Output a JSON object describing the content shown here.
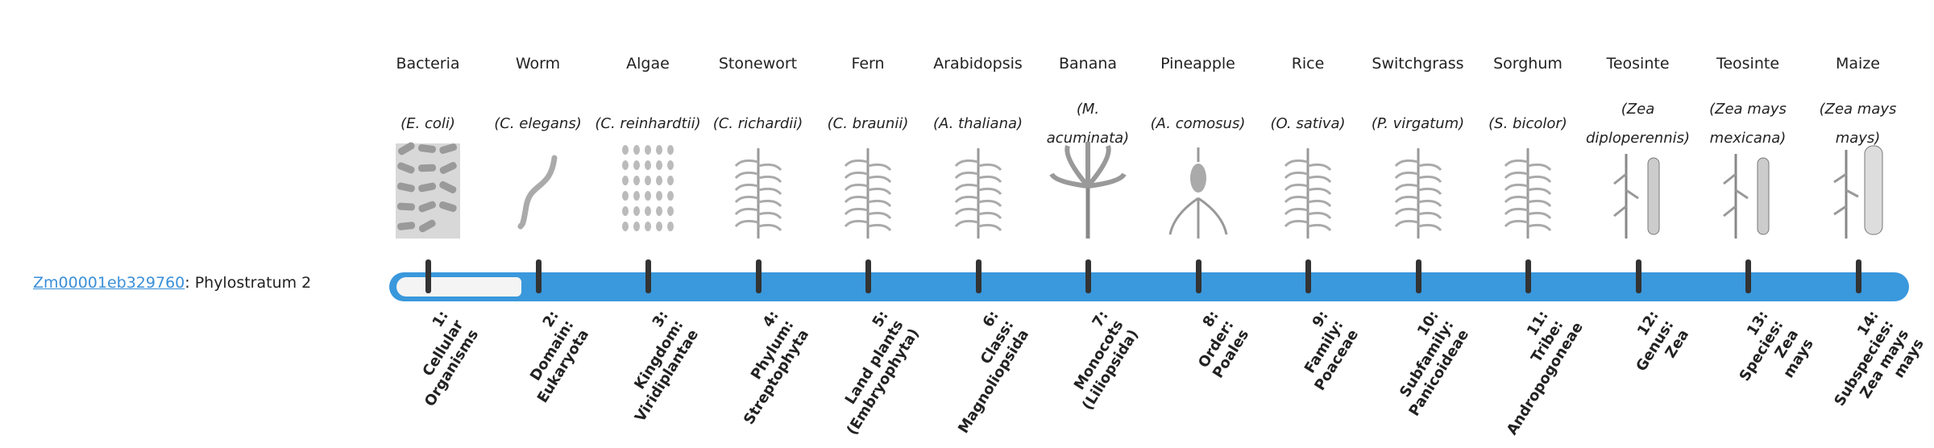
{
  "gene": {
    "id": "Zm00001eb329760",
    "suffix": ": Phylostratum 2",
    "phylostratum": 2
  },
  "colors": {
    "bar": "#3a98dc",
    "link": "#3a8fd8",
    "tick": "#333333"
  },
  "organisms": [
    {
      "name": "Bacteria",
      "species": "(E. coli)",
      "icon": "bacteria-icon",
      "label": [
        "1:",
        "Cellular",
        "Organisms"
      ]
    },
    {
      "name": "Worm",
      "species": "(C. elegans)",
      "icon": "worm-icon",
      "label": [
        "2:",
        "Domain:",
        "Eukaryota"
      ]
    },
    {
      "name": "Algae",
      "species": "(C. reinhardtii)",
      "icon": "algae-icon",
      "label": [
        "3:",
        "Kingdom:",
        "Viridiplantae"
      ]
    },
    {
      "name": "Stonewort",
      "species": "(C. richardii)",
      "icon": "stonewort-icon",
      "label": [
        "4:",
        "Phylum:",
        "Streptophyta"
      ]
    },
    {
      "name": "Fern",
      "species": "(C. braunii)",
      "icon": "fern-icon",
      "label": [
        "5:",
        "Land plants",
        "(Embryophyta)"
      ]
    },
    {
      "name": "Arabidopsis",
      "species": "(A. thaliana)",
      "icon": "arabidopsis-icon",
      "label": [
        "6:",
        "Class:",
        "Magnoliopsida"
      ]
    },
    {
      "name": "Banana",
      "species": "(M. acuminata)",
      "icon": "banana-icon",
      "label": [
        "7:",
        "Monocots",
        "(Liliopsida)"
      ]
    },
    {
      "name": "Pineapple",
      "species": "(A. comosus)",
      "icon": "pineapple-icon",
      "label": [
        "8:",
        "Order:",
        "Poales"
      ]
    },
    {
      "name": "Rice",
      "species": "(O. sativa)",
      "icon": "rice-icon",
      "label": [
        "9:",
        "Family:",
        "Poaceae"
      ]
    },
    {
      "name": "Switchgrass",
      "species": "(P. virgatum)",
      "icon": "switchgrass-icon",
      "label": [
        "10:",
        "Subfamily:",
        "Panicoideae"
      ]
    },
    {
      "name": "Sorghum",
      "species": "(S. bicolor)",
      "icon": "sorghum-icon",
      "label": [
        "11:",
        "Tribe:",
        "Andropogoneae"
      ]
    },
    {
      "name": "Teosinte",
      "species": "(Zea diploperennis)",
      "icon": "teosinte-icon",
      "label": [
        "12:",
        "Genus:",
        "Zea"
      ]
    },
    {
      "name": "Teosinte",
      "species": "(Zea mays mexicana)",
      "icon": "teosinte-icon",
      "label": [
        "13:",
        "Species:",
        "Zea",
        "mays"
      ]
    },
    {
      "name": "Maize",
      "species": "(Zea mays mays)",
      "icon": "maize-icon",
      "label": [
        "14:",
        "Subspecies:",
        "Zea mays",
        "mays"
      ]
    }
  ]
}
